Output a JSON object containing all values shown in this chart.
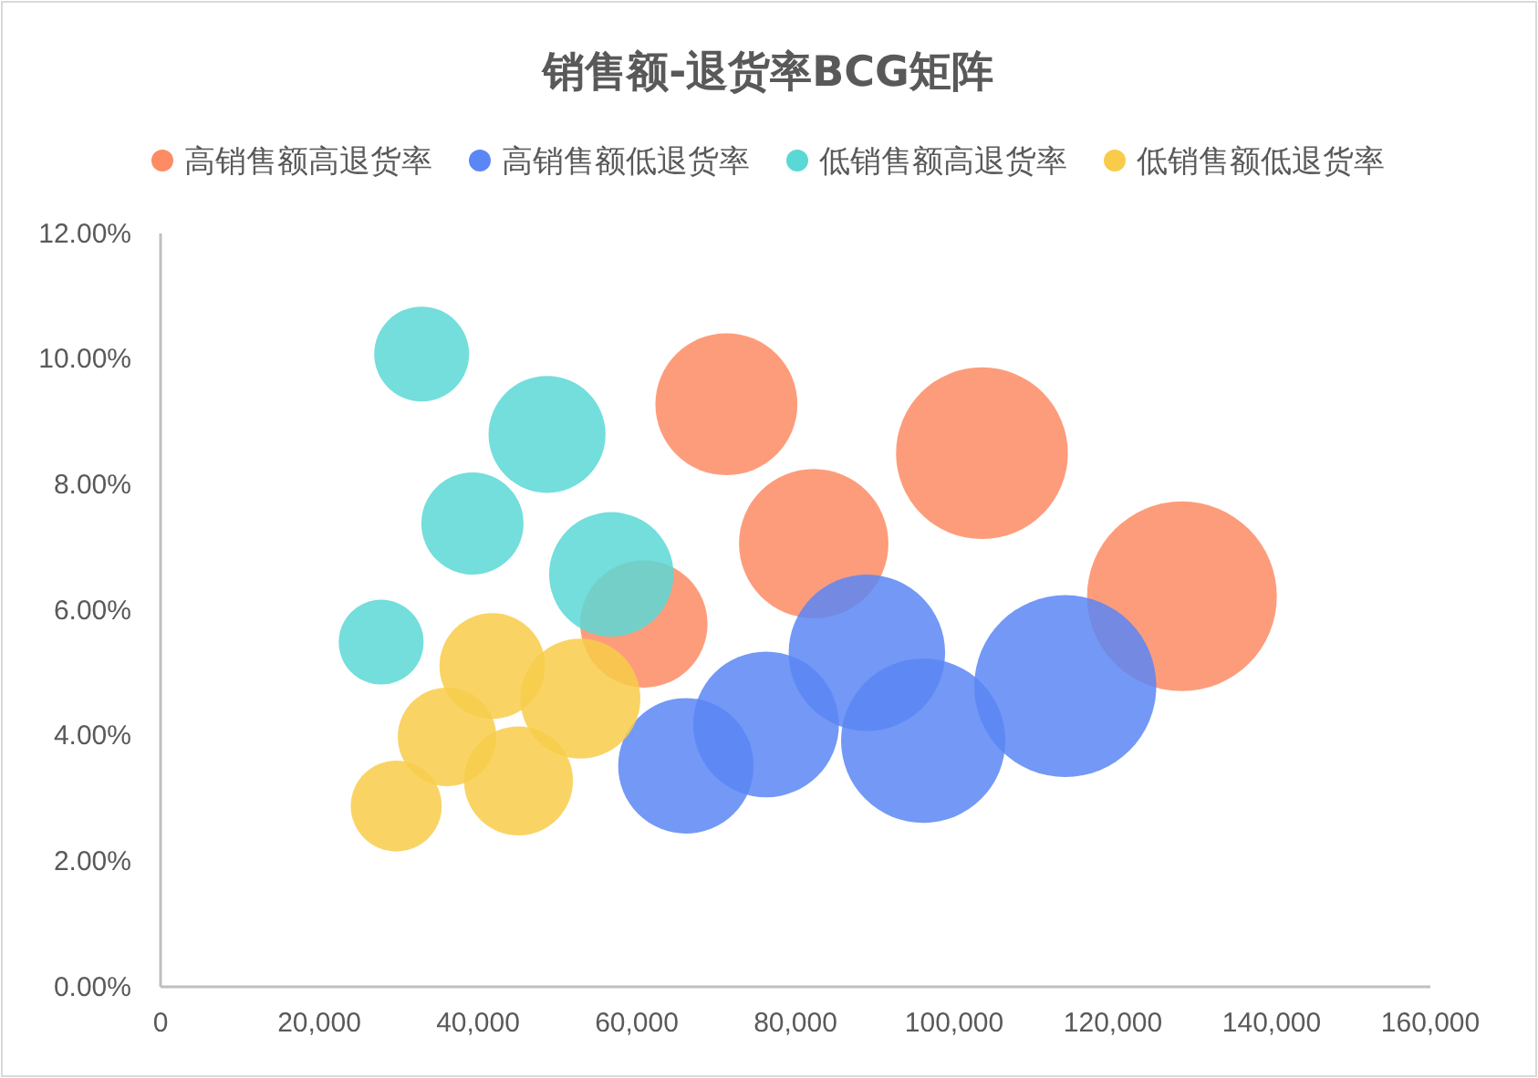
{
  "chart_data": {
    "type": "bubble",
    "title": "销售额-退货率BCG矩阵",
    "legend": "top",
    "grid": false,
    "xlim": [
      0,
      160000
    ],
    "xticks": [
      {
        "value": 0,
        "label": "0"
      },
      {
        "value": 20000,
        "label": "20,000"
      },
      {
        "value": 40000,
        "label": "40,000"
      },
      {
        "value": 60000,
        "label": "60,000"
      },
      {
        "value": 80000,
        "label": "80,000"
      },
      {
        "value": 100000,
        "label": "100,000"
      },
      {
        "value": 120000,
        "label": "120,000"
      },
      {
        "value": 140000,
        "label": "140,000"
      },
      {
        "value": 160000,
        "label": "160,000"
      }
    ],
    "ylim": [
      0,
      12
    ],
    "yticks": [
      {
        "value": 0,
        "label": "0.00%"
      },
      {
        "value": 2,
        "label": "2.00%"
      },
      {
        "value": 4,
        "label": "4.00%"
      },
      {
        "value": 6,
        "label": "6.00%"
      },
      {
        "value": 8,
        "label": "8.00%"
      },
      {
        "value": 10,
        "label": "10.00%"
      },
      {
        "value": 12,
        "label": "12.00%"
      }
    ],
    "series": [
      {
        "name": "高销售额高退货率",
        "color": "#fd8b64",
        "x": [
          71300,
          103500,
          82300,
          128700,
          60900
        ],
        "values": [
          9.28,
          8.5,
          7.06,
          6.22,
          5.78
        ],
        "sizes": [
          0.56,
          0.82,
          0.62,
          1,
          0.45
        ]
      },
      {
        "name": "高销售额低退货率",
        "color": "#5b86f5",
        "x": [
          66200,
          76300,
          89000,
          96100,
          114000
        ],
        "values": [
          3.52,
          4.18,
          5.32,
          3.92,
          4.79
        ],
        "sizes": [
          0.51,
          0.59,
          0.68,
          0.75,
          0.92
        ]
      },
      {
        "name": "低销售额高退货率",
        "color": "#5ad8d6",
        "x": [
          32900,
          48700,
          39300,
          56800,
          27800
        ],
        "values": [
          10.08,
          8.8,
          7.38,
          6.57,
          5.49
        ],
        "sizes": [
          0.25,
          0.38,
          0.29,
          0.43,
          0.2
        ]
      },
      {
        "name": "低销售额低退货率",
        "color": "#f8cc4a",
        "x": [
          41800,
          52900,
          36100,
          45100,
          29700
        ],
        "values": [
          5.11,
          4.59,
          3.98,
          3.28,
          2.88
        ],
        "sizes": [
          0.31,
          0.4,
          0.27,
          0.33,
          0.23
        ]
      }
    ]
  }
}
